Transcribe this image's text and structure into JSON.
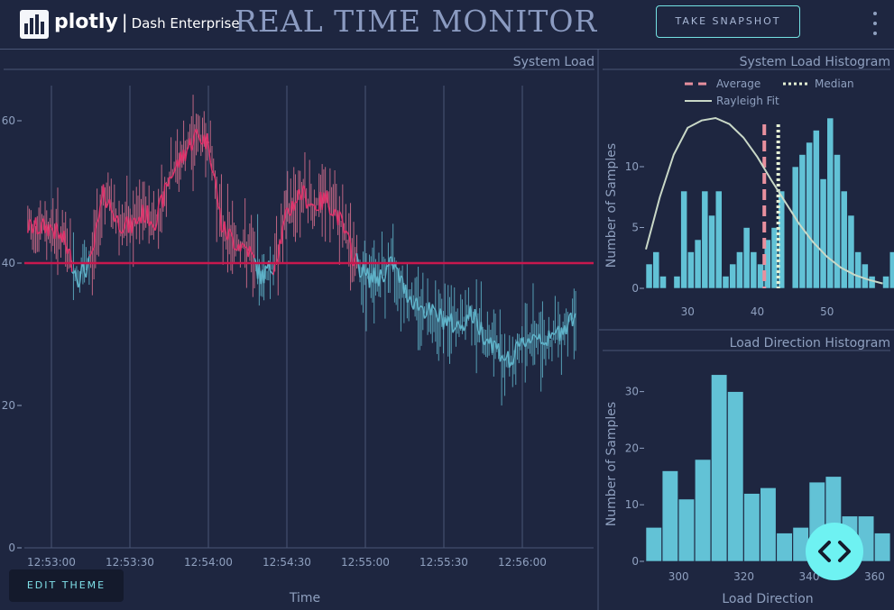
{
  "header": {
    "brand_name": "plotly",
    "brand_separator": "|",
    "brand_product": "Dash Enterprise",
    "title": "REAL TIME MONITOR",
    "snapshot_label": "TAKE SNAPSHOT"
  },
  "edit_theme_label": "EDIT THEME",
  "colors": {
    "accent": "#74e2e3",
    "background": "#1e2640",
    "series_red": "#d43a6a",
    "series_teal": "#5fb3c9"
  },
  "chart_data": [
    {
      "type": "line",
      "title": "System Load",
      "xlabel": "Time",
      "ylabel": "",
      "x_ticks": [
        "12:53:00",
        "12:53:30",
        "12:54:00",
        "12:54:30",
        "12:55:00",
        "12:55:30",
        "12:56:00"
      ],
      "y_ticks": [
        "0",
        "20",
        "40",
        "60"
      ],
      "ylim": [
        0,
        65
      ],
      "threshold": 40,
      "series": [
        {
          "x_seconds_from_start": [
            0,
            5,
            10,
            15,
            20,
            25,
            30,
            35,
            40,
            45,
            50,
            55,
            60,
            65,
            70,
            75,
            80,
            85,
            90,
            95,
            100,
            105,
            110,
            115,
            120,
            125,
            130,
            135,
            140,
            145,
            150,
            155,
            160,
            165,
            170,
            175,
            180,
            185,
            190,
            195,
            200
          ],
          "values": [
            45,
            43,
            38,
            40,
            50,
            46,
            45,
            47,
            46,
            52,
            55,
            58,
            57,
            45,
            43,
            42,
            38,
            40,
            47,
            50,
            48,
            49,
            46,
            41,
            38,
            38,
            40,
            36,
            34,
            33,
            32,
            31,
            33,
            30,
            28,
            26,
            29,
            30,
            29,
            31,
            33
          ]
        }
      ]
    },
    {
      "type": "bar",
      "title": "System Load Histogram",
      "xlabel": "",
      "ylabel": "Number of Samples",
      "x_ticks": [
        "30",
        "40",
        "50"
      ],
      "y_ticks": [
        "0",
        "5",
        "10"
      ],
      "ylim": [
        0,
        14
      ],
      "legend": [
        "Average",
        "Median",
        "Rayleigh Fit"
      ],
      "legend_placement": "top",
      "average": 41,
      "median": 43,
      "bin_start": 24,
      "bin_width": 1,
      "values": [
        2,
        3,
        1,
        0,
        1,
        8,
        3,
        4,
        8,
        6,
        8,
        1,
        2,
        3,
        5,
        3,
        2,
        4,
        5,
        8,
        0,
        10,
        11,
        12,
        13,
        9,
        14,
        11,
        8,
        6,
        3,
        2,
        1,
        0,
        1,
        3,
        2,
        0,
        1,
        3
      ],
      "rayleigh_x": [
        24,
        26,
        28,
        30,
        32,
        34,
        36,
        38,
        40,
        42,
        44,
        46,
        48,
        50,
        52,
        54,
        56,
        58
      ],
      "rayleigh_y": [
        3.2,
        7.5,
        11.0,
        13.2,
        13.8,
        14.0,
        13.5,
        12.4,
        10.8,
        8.9,
        7.1,
        5.3,
        3.8,
        2.6,
        1.7,
        1.1,
        0.7,
        0.4
      ]
    },
    {
      "type": "bar",
      "title": "Load Direction Histogram",
      "xlabel": "Load Direction",
      "ylabel": "Number of Samples",
      "x_ticks": [
        "300",
        "320",
        "340",
        "360"
      ],
      "y_ticks": [
        "0",
        "10",
        "20",
        "30"
      ],
      "ylim": [
        0,
        35
      ],
      "bin_start": 290,
      "bin_width": 5,
      "values": [
        6,
        16,
        11,
        18,
        33,
        30,
        12,
        13,
        5,
        6,
        14,
        15,
        8,
        8,
        5
      ]
    }
  ]
}
